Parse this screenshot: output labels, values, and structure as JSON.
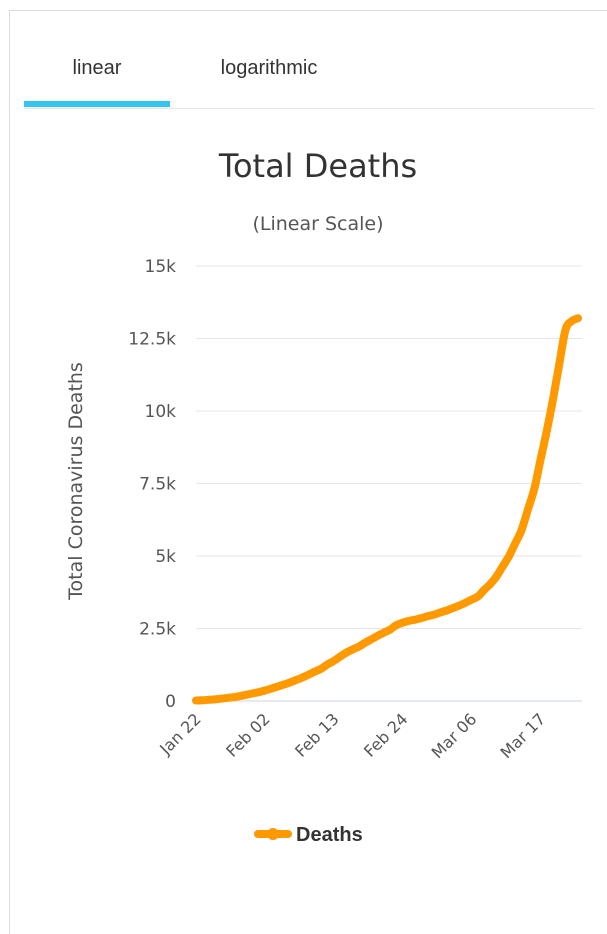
{
  "tabs": [
    {
      "label": "linear",
      "active": true
    },
    {
      "label": "logarithmic",
      "active": false
    }
  ],
  "colors": {
    "accent": "#33c5f0",
    "series": "#ff9900",
    "grid": "#e6e6e6",
    "text": "#333333"
  },
  "chart_data": {
    "type": "line",
    "title": "Total Deaths",
    "subtitle": "(Linear Scale)",
    "xlabel": "",
    "ylabel": "Total Coronavirus Deaths",
    "ylim": [
      0,
      15000
    ],
    "yticks": [
      0,
      2500,
      5000,
      7500,
      10000,
      12500,
      15000
    ],
    "ytick_labels": [
      "0",
      "2.5k",
      "5k",
      "7.5k",
      "10k",
      "12.5k",
      "15k"
    ],
    "xtick_labels": [
      "Jan 22",
      "Feb 02",
      "Feb 13",
      "Feb 24",
      "Mar 06",
      "Mar 17"
    ],
    "x": [
      "Jan 22",
      "Jan 23",
      "Jan 24",
      "Jan 25",
      "Jan 26",
      "Jan 27",
      "Jan 28",
      "Jan 29",
      "Jan 30",
      "Jan 31",
      "Feb 01",
      "Feb 02",
      "Feb 03",
      "Feb 04",
      "Feb 05",
      "Feb 06",
      "Feb 07",
      "Feb 08",
      "Feb 09",
      "Feb 10",
      "Feb 11",
      "Feb 12",
      "Feb 13",
      "Feb 14",
      "Feb 15",
      "Feb 16",
      "Feb 17",
      "Feb 18",
      "Feb 19",
      "Feb 20",
      "Feb 21",
      "Feb 22",
      "Feb 23",
      "Feb 24",
      "Feb 25",
      "Feb 26",
      "Feb 27",
      "Feb 28",
      "Feb 29",
      "Mar 01",
      "Mar 02",
      "Mar 03",
      "Mar 04",
      "Mar 05",
      "Mar 06",
      "Mar 07",
      "Mar 08",
      "Mar 09",
      "Mar 10",
      "Mar 11",
      "Mar 12",
      "Mar 13",
      "Mar 14",
      "Mar 15",
      "Mar 16",
      "Mar 17",
      "Mar 18",
      "Mar 19",
      "Mar 20",
      "Mar 21",
      "Mar 22",
      "Mar 23"
    ],
    "series": [
      {
        "name": "Deaths",
        "values": [
          17,
          25,
          41,
          56,
          80,
          106,
          132,
          170,
          213,
          259,
          304,
          362,
          426,
          492,
          565,
          638,
          724,
          813,
          910,
          1018,
          1115,
          1261,
          1383,
          1526,
          1669,
          1775,
          1873,
          2009,
          2126,
          2247,
          2360,
          2460,
          2618,
          2700,
          2762,
          2805,
          2858,
          2923,
          2977,
          3050,
          3117,
          3202,
          3285,
          3387,
          3494,
          3599,
          3827,
          4030,
          4300,
          4650,
          5000,
          5450,
          5900,
          6600,
          7300,
          8300,
          9300,
          10400,
          11600,
          12800,
          13100,
          13200
        ]
      }
    ],
    "legend": "bottom-center",
    "grid": true
  }
}
